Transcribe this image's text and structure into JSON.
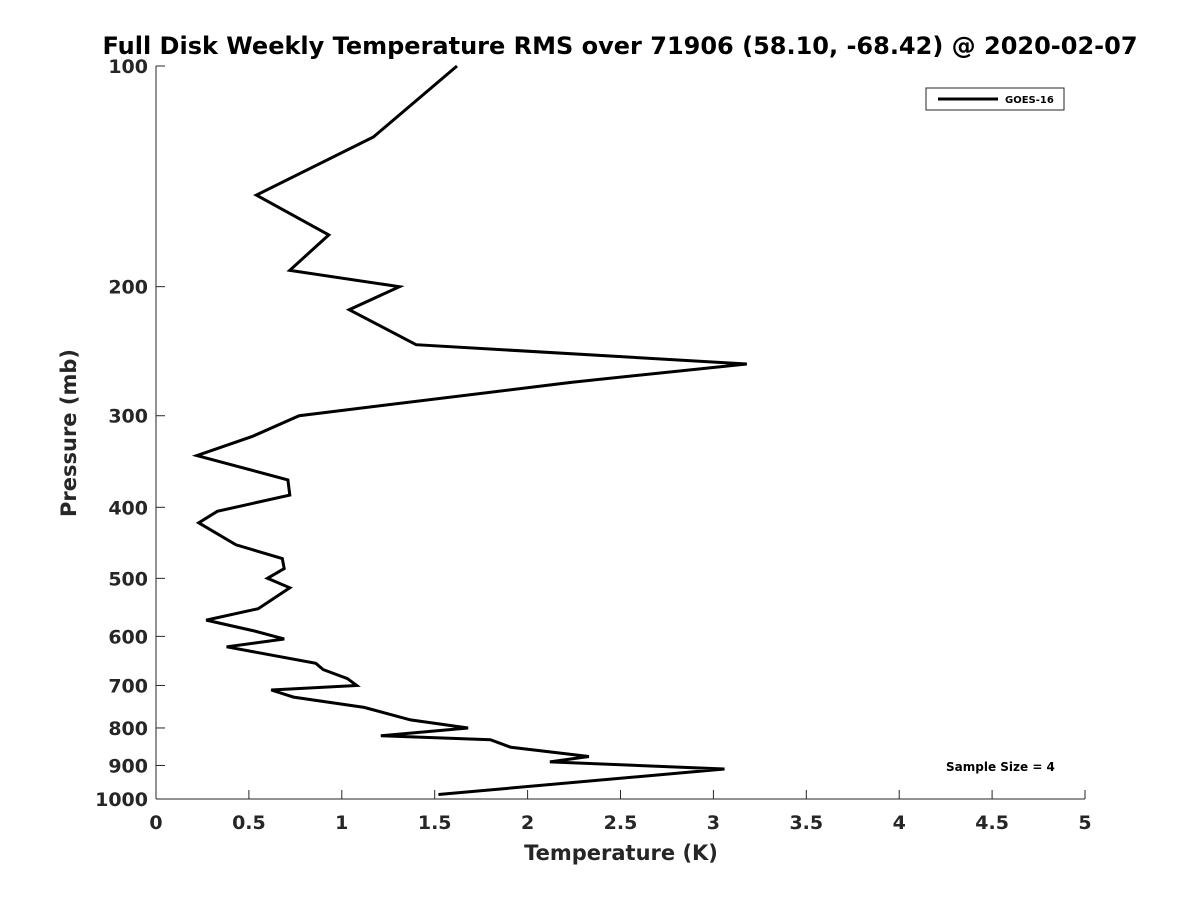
{
  "chart_data": {
    "type": "line",
    "title": "Full Disk Weekly Temperature RMS over 71906 (58.10, -68.42) @ 2020-02-07",
    "xlabel": "Temperature (K)",
    "ylabel": "Pressure (mb)",
    "xlim": [
      0,
      5
    ],
    "ylim": [
      100,
      1000
    ],
    "y_scale": "log",
    "y_reversed": true,
    "x_ticks": [
      "0",
      "0.5",
      "1",
      "1.5",
      "2",
      "2.5",
      "3",
      "3.5",
      "4",
      "4.5",
      "5"
    ],
    "y_ticks": [
      "100",
      "200",
      "300",
      "400",
      "500",
      "600",
      "700",
      "800",
      "900",
      "1000"
    ],
    "grid": false,
    "legend_position": "top-right",
    "annotation": "Sample Size = 4",
    "series": [
      {
        "name": "GOES-16",
        "color": "#000000",
        "points": [
          [
            1.62,
            100
          ],
          [
            1.17,
            125
          ],
          [
            0.54,
            150
          ],
          [
            0.93,
            170
          ],
          [
            0.72,
            190
          ],
          [
            1.31,
            200
          ],
          [
            1.04,
            215
          ],
          [
            1.4,
            240
          ],
          [
            3.18,
            255
          ],
          [
            2.24,
            270
          ],
          [
            0.77,
            300
          ],
          [
            0.52,
            320
          ],
          [
            0.22,
            340
          ],
          [
            0.71,
            367
          ],
          [
            0.72,
            385
          ],
          [
            0.33,
            405
          ],
          [
            0.23,
            420
          ],
          [
            0.43,
            450
          ],
          [
            0.68,
            470
          ],
          [
            0.69,
            485
          ],
          [
            0.6,
            500
          ],
          [
            0.72,
            515
          ],
          [
            0.55,
            550
          ],
          [
            0.27,
            570
          ],
          [
            0.53,
            590
          ],
          [
            0.69,
            605
          ],
          [
            0.38,
            620
          ],
          [
            0.86,
            653
          ],
          [
            0.9,
            666
          ],
          [
            1.03,
            685
          ],
          [
            1.08,
            700
          ],
          [
            0.62,
            710
          ],
          [
            0.74,
            726
          ],
          [
            1.12,
            750
          ],
          [
            1.37,
            780
          ],
          [
            1.68,
            800
          ],
          [
            1.21,
            820
          ],
          [
            1.8,
            830
          ],
          [
            1.91,
            850
          ],
          [
            2.33,
            875
          ],
          [
            2.12,
            890
          ],
          [
            3.06,
            910
          ],
          [
            1.52,
            986
          ]
        ]
      }
    ]
  }
}
